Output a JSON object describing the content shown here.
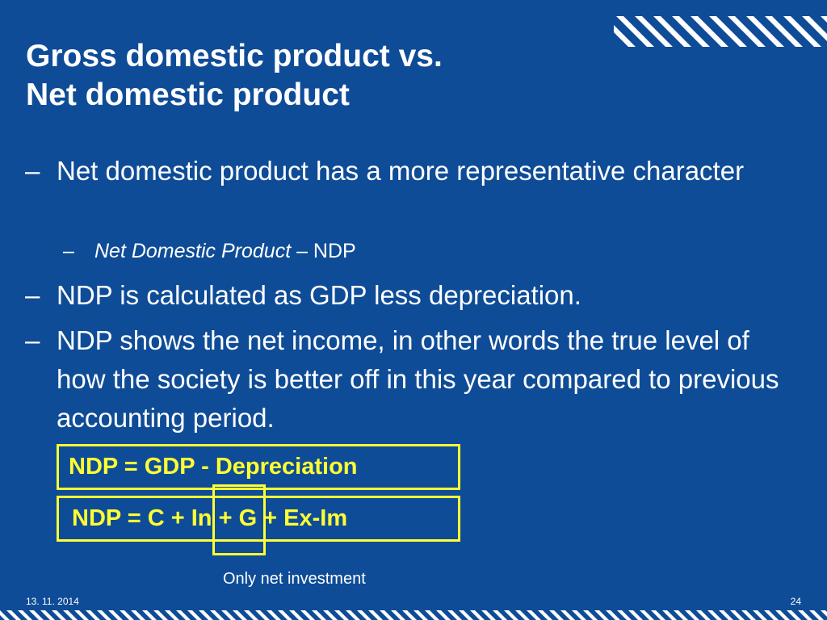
{
  "slide": {
    "title_line1": "Gross domestic product vs.",
    "title_line2": "Net domestic product",
    "bullets": [
      {
        "dash": "–",
        "text": "Net domestic product has a more representative character"
      },
      {
        "dash": "–",
        "italic": "Net Domestic Product",
        "rest": " – NDP"
      },
      {
        "dash": "–",
        "text": "NDP is calculated as GDP less depreciation."
      },
      {
        "dash": "–",
        "text": "NDP shows the net income, in other words the true level of how the society is better off in this year compared to previous accounting period."
      }
    ],
    "formula1": "NDP = GDP - Depreciation",
    "formula2": "NDP = C + In + G + Ex-Im",
    "annotation": "Only net investment",
    "footer_date": "13. 11. 2014",
    "page_number": "24"
  },
  "colors": {
    "background": "#0f4c97",
    "text": "#ffffff",
    "highlight": "#ffff33"
  }
}
